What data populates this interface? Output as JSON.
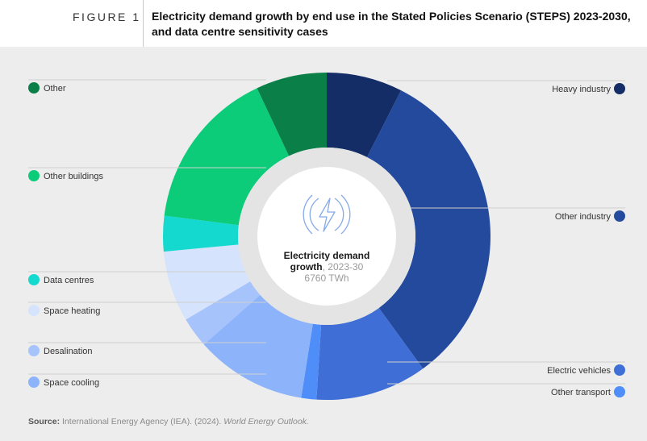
{
  "header": {
    "figure_label": "FIGURE 1",
    "title_line1": "Electricity demand growth by end use in the Stated Policies Scenario (STEPS) 2023-2030,",
    "title_line2": "and data centre sensitivity cases"
  },
  "center": {
    "title_line1": "Electricity demand",
    "title_bold2": "growth",
    "title_rest2": ", 2023-30",
    "value": "6760 TWh",
    "icon": "lightning-bolt-icon"
  },
  "source": {
    "label": "Source:",
    "text": "International Energy Agency (IEA). (2024).",
    "publication": "World Energy Outlook."
  },
  "chart_data": {
    "type": "pie",
    "variant": "donut",
    "total_label": "6760 TWh",
    "slices": [
      {
        "name": "Heavy industry",
        "share": 0.075,
        "color": "#152d66",
        "side": "right"
      },
      {
        "name": "Other industry",
        "share": 0.325,
        "color": "#244a9e",
        "side": "right"
      },
      {
        "name": "Electric vehicles",
        "share": 0.11,
        "color": "#3f6fd6",
        "side": "right"
      },
      {
        "name": "Other transport",
        "share": 0.015,
        "color": "#4f8ef8",
        "side": "right"
      },
      {
        "name": "Space cooling",
        "share": 0.11,
        "color": "#8db4fb",
        "side": "left"
      },
      {
        "name": "Desalination",
        "share": 0.03,
        "color": "#a6c4fb",
        "side": "left"
      },
      {
        "name": "Space heating",
        "share": 0.07,
        "color": "#d5e3fc",
        "side": "left"
      },
      {
        "name": "Data centres",
        "share": 0.035,
        "color": "#14d9cf",
        "side": "left"
      },
      {
        "name": "Other buildings",
        "share": 0.16,
        "color": "#0ccc7a",
        "side": "left"
      },
      {
        "name": "Other",
        "share": 0.07,
        "color": "#0a8048",
        "side": "left"
      }
    ],
    "legend_order_left": [
      "Other",
      "Other buildings",
      "Data centres",
      "Space heating",
      "Desalination",
      "Space cooling"
    ],
    "legend_order_right": [
      "Heavy industry",
      "Other industry",
      "Electric vehicles",
      "Other transport"
    ]
  }
}
